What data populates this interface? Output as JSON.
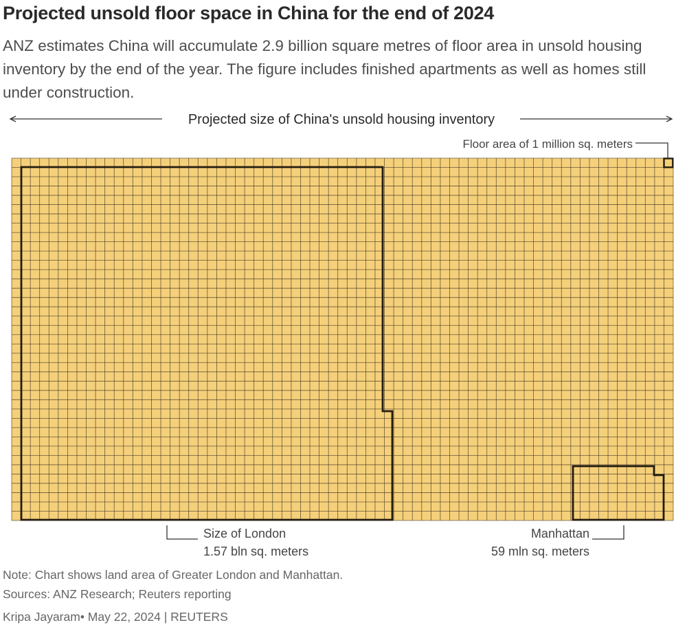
{
  "header": {
    "title": "Projected unsold floor space in China for the end of 2024",
    "subtitle": "ANZ estimates China will accumulate 2.9 billion square metres of floor area in unsold housing inventory by the end of the year. The figure includes finished apartments as well as homes still under construction."
  },
  "chart_data": {
    "type": "unit-grid",
    "span_label": "Projected size of China's unsold housing inventory",
    "unit_label": "Floor area of 1 million sq. meters",
    "unit_value_mln_sqm": 1,
    "total_mln_sqm": 2900,
    "grid_columns": 71,
    "grid_rows": 39,
    "cell_color": "#f5d07a",
    "line_color": "#3b3223",
    "outline_color": "#231c10",
    "regions": [
      {
        "name": "Size of London",
        "value_label": "1.57 bln sq. meters",
        "value_mln_sqm": 1570
      },
      {
        "name": "Manhattan",
        "value_label": "59 mln sq. meters",
        "value_mln_sqm": 59
      }
    ]
  },
  "footer": {
    "note": "Note: Chart shows land area of Greater London and Manhattan.",
    "sources": "Sources: ANZ Research; Reuters reporting",
    "byline": "Kripa Jayaram• May 22, 2024 | REUTERS"
  }
}
